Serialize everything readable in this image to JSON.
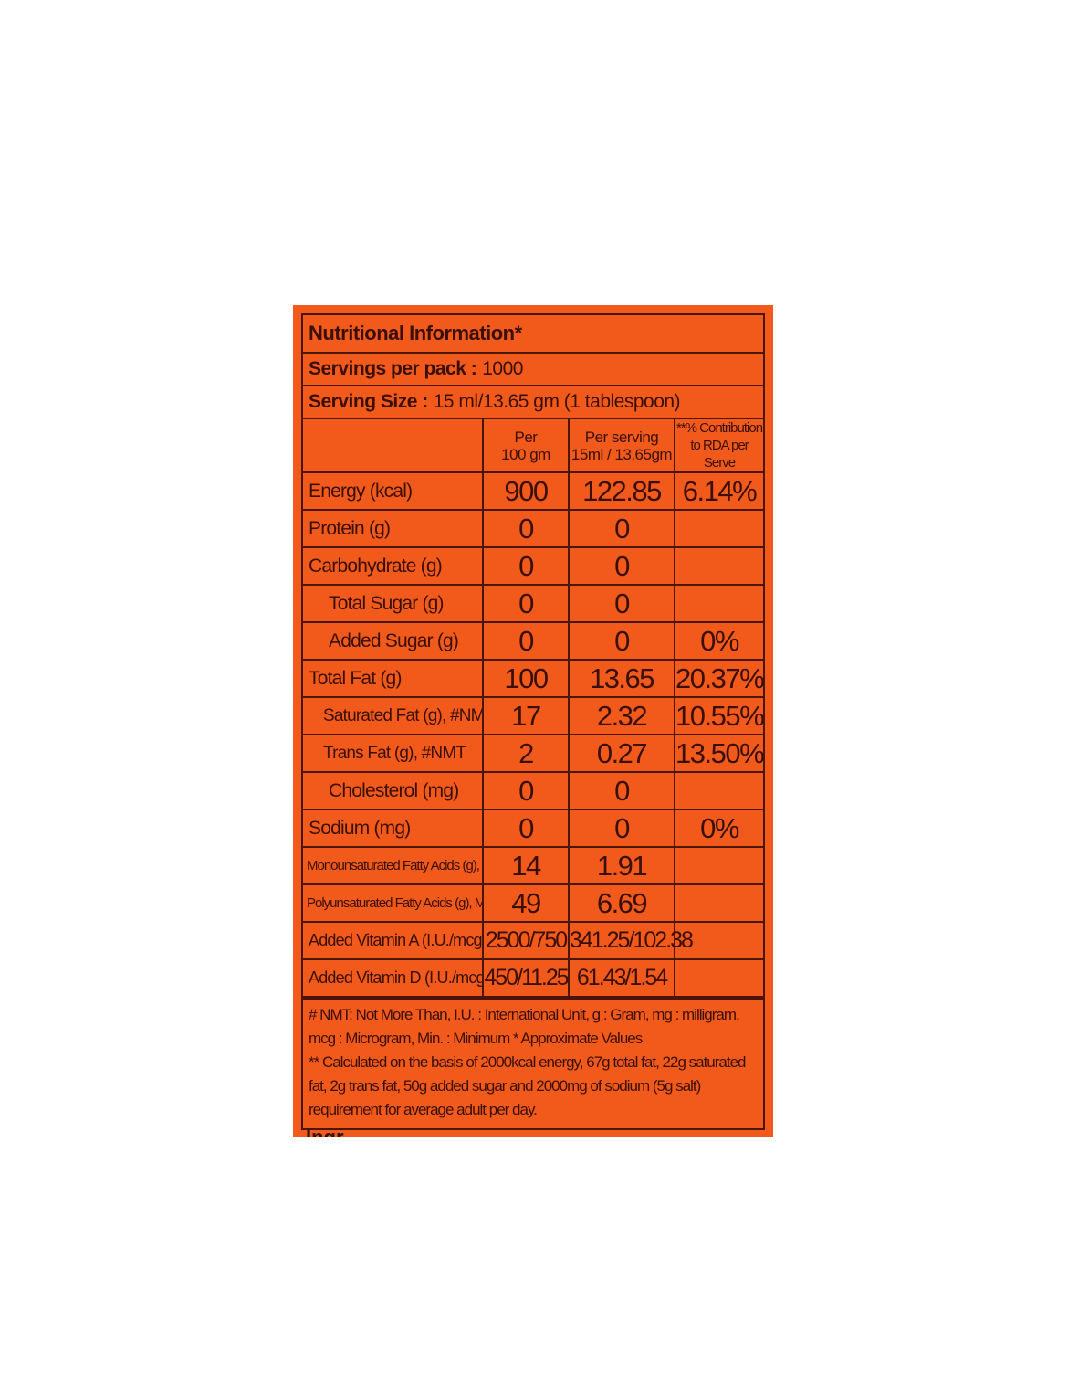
{
  "label": {
    "title": "Nutritional Information*",
    "servings_label": "Servings per pack :",
    "servings_value": "1000",
    "serving_size_label": "Serving Size :",
    "serving_size_value": "15 ml/13.65 gm (1 tablespoon)",
    "columns": [
      "",
      "Per\n100 gm",
      "Per serving\n15ml / 13.65gm",
      "**% Contribution\nto RDA per Serve"
    ],
    "rows": [
      {
        "name": "Energy (kcal)",
        "per100": "900",
        "serving": "122.85",
        "rda": "6.14%"
      },
      {
        "name": "Protein (g)",
        "per100": "0",
        "serving": "0",
        "rda": ""
      },
      {
        "name": "Carbohydrate (g)",
        "per100": "0",
        "serving": "0",
        "rda": ""
      },
      {
        "name": "Total Sugar (g)",
        "per100": "0",
        "serving": "0",
        "rda": ""
      },
      {
        "name": "Added Sugar (g)",
        "per100": "0",
        "serving": "0",
        "rda": "0%"
      },
      {
        "name": "Total Fat (g)",
        "per100": "100",
        "serving": "13.65",
        "rda": "20.37%"
      },
      {
        "name": "Saturated Fat (g), #NMT",
        "per100": "17",
        "serving": "2.32",
        "rda": "10.55%"
      },
      {
        "name": "Trans Fat (g), #NMT",
        "per100": "2",
        "serving": "0.27",
        "rda": "13.50%"
      },
      {
        "name": "Cholesterol (mg)",
        "per100": "0",
        "serving": "0",
        "rda": ""
      },
      {
        "name": "Sodium (mg)",
        "per100": "0",
        "serving": "0",
        "rda": "0%"
      },
      {
        "name": "Monounsaturated Fatty Acids (g), Min.",
        "per100": "14",
        "serving": "1.91",
        "rda": ""
      },
      {
        "name": "Polyunsaturated Fatty Acids (g), Min.",
        "per100": "49",
        "serving": "6.69",
        "rda": ""
      },
      {
        "name": "Added Vitamin A (I.U./mcg)",
        "per100": "2500/750",
        "serving": "341.25/102.38",
        "rda": ""
      },
      {
        "name": "Added Vitamin D (I.U./mcg)",
        "per100": "450/11.25",
        "serving": "61.43/1.54",
        "rda": ""
      }
    ],
    "footnote_1": "# NMT: Not More Than, I.U. : International Unit, g : Gram, mg : milligram, mcg : Microgram, Min. : Minimum    * Approximate Values",
    "footnote_2": "** Calculated on the basis of 2000kcal energy, 67g total fat, 22g saturated fat, 2g trans fat, 50g added sugar and 2000mg of sodium (5g salt) requirement for average adult per day.",
    "cutoff_text": "Ingr",
    "colors": {
      "background": "#f25a1c",
      "ink": "#3a1006"
    }
  }
}
